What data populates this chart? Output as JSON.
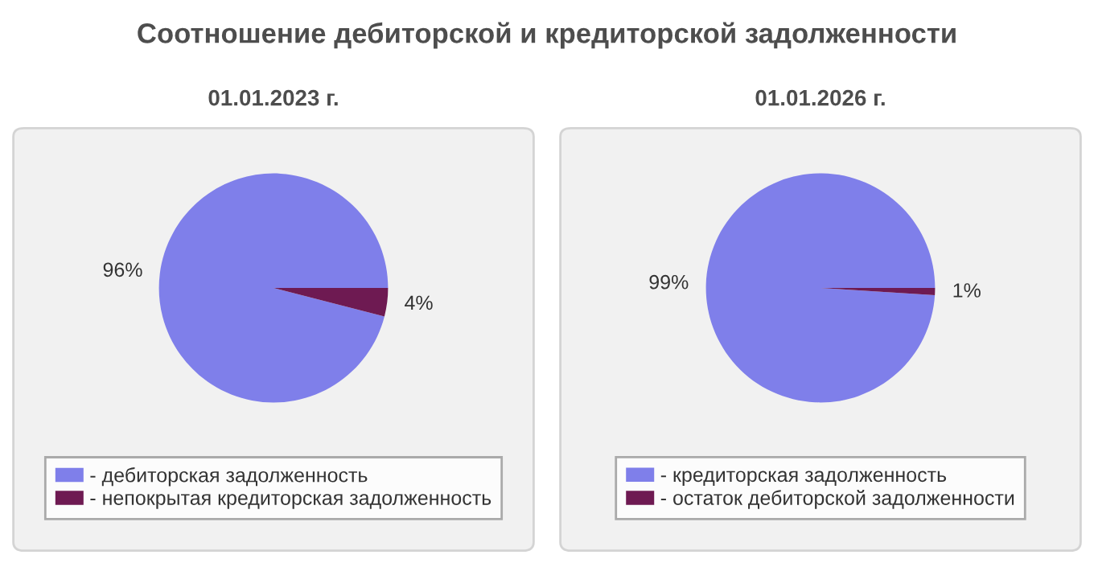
{
  "chart_data": [
    {
      "type": "pie",
      "title": "Соотношение дебиторской и кредиторской задолженности",
      "subtitle": "01.01.2023 г.",
      "categories": [
        "- дебиторская задолженность",
        "- непокрытая кредиторская задолженность"
      ],
      "values": [
        96,
        4
      ],
      "colors": [
        "#7f7fea",
        "#6e1a52"
      ],
      "value_labels": [
        "96%",
        "4%"
      ],
      "legend": "bottom"
    },
    {
      "type": "pie",
      "subtitle": "01.01.2026 г.",
      "categories": [
        "- кредиторская задолженность",
        "- остаток дебиторской задолженности"
      ],
      "values": [
        99,
        1
      ],
      "colors": [
        "#7f7fea",
        "#6e1a52"
      ],
      "value_labels": [
        "99%",
        "1%"
      ],
      "legend": "bottom"
    }
  ]
}
